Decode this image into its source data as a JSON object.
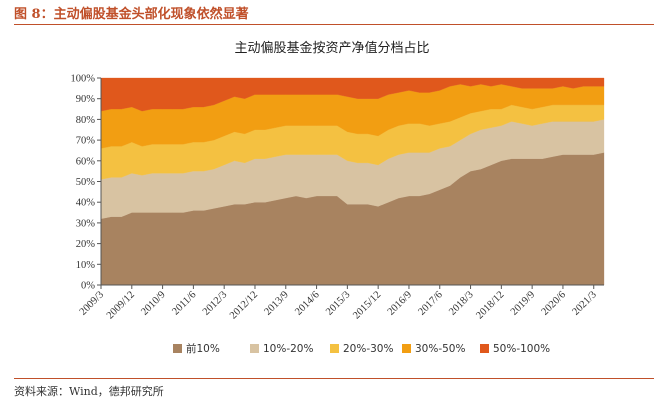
{
  "figure": {
    "title": "图 8：主动偏股基金头部化现象依然显著",
    "source": "资料来源：Wind，德邦研究所"
  },
  "chart_data": {
    "type": "area",
    "stacked": true,
    "title": "主动偏股基金按资产净值分档占比",
    "ylim": [
      0,
      100
    ],
    "y_ticks": [
      "0%",
      "10%",
      "20%",
      "30%",
      "40%",
      "50%",
      "60%",
      "70%",
      "80%",
      "90%",
      "100%"
    ],
    "x_tick_labels": [
      "2009/3",
      "2009/12",
      "2010/9",
      "2011/6",
      "2012/3",
      "2012/12",
      "2013/9",
      "2014/6",
      "2015/3",
      "2015/12",
      "2016/9",
      "2017/6",
      "2018/3",
      "2018/12",
      "2019/9",
      "2020/6",
      "2021/3"
    ],
    "legend_position": "bottom",
    "colors": [
      "#a88360",
      "#d8c3a2",
      "#f4c141",
      "#f29e12",
      "#e0581c"
    ],
    "x": [
      "2009/3",
      "2009/6",
      "2009/9",
      "2009/12",
      "2010/3",
      "2010/6",
      "2010/9",
      "2010/12",
      "2011/3",
      "2011/6",
      "2011/9",
      "2011/12",
      "2012/3",
      "2012/6",
      "2012/9",
      "2012/12",
      "2013/3",
      "2013/6",
      "2013/9",
      "2013/12",
      "2014/3",
      "2014/6",
      "2014/9",
      "2014/12",
      "2015/3",
      "2015/6",
      "2015/9",
      "2015/12",
      "2016/3",
      "2016/6",
      "2016/9",
      "2016/12",
      "2017/3",
      "2017/6",
      "2017/9",
      "2017/12",
      "2018/3",
      "2018/6",
      "2018/9",
      "2018/12",
      "2019/3",
      "2019/6",
      "2019/9",
      "2019/12",
      "2020/3",
      "2020/6",
      "2020/9",
      "2020/12",
      "2021/3",
      "2021/6"
    ],
    "series": [
      {
        "name": "前10%",
        "values": [
          32,
          33,
          33,
          35,
          35,
          35,
          35,
          35,
          35,
          36,
          36,
          37,
          38,
          39,
          39,
          40,
          40,
          41,
          42,
          43,
          42,
          43,
          43,
          43,
          39,
          39,
          39,
          38,
          40,
          42,
          43,
          43,
          44,
          46,
          48,
          52,
          55,
          56,
          58,
          60,
          61,
          61,
          61,
          61,
          62,
          63,
          63,
          63,
          63,
          64
        ]
      },
      {
        "name": "10%-20%",
        "values": [
          19,
          19,
          19,
          19,
          18,
          19,
          19,
          19,
          19,
          19,
          19,
          19,
          20,
          21,
          20,
          21,
          21,
          21,
          21,
          20,
          21,
          20,
          20,
          20,
          21,
          20,
          20,
          20,
          21,
          21,
          21,
          21,
          20,
          20,
          19,
          18,
          18,
          19,
          18,
          17,
          18,
          17,
          16,
          17,
          17,
          16,
          16,
          16,
          16,
          16
        ]
      },
      {
        "name": "20%-30%",
        "values": [
          15,
          15,
          15,
          15,
          14,
          14,
          14,
          14,
          14,
          14,
          14,
          14,
          14,
          14,
          14,
          14,
          14,
          14,
          14,
          14,
          14,
          14,
          14,
          14,
          14,
          14,
          14,
          14,
          14,
          14,
          14,
          14,
          13,
          12,
          12,
          11,
          10,
          9,
          9,
          8,
          8,
          8,
          8,
          8,
          8,
          8,
          8,
          8,
          8,
          7
        ]
      },
      {
        "name": "30%-50%",
        "values": [
          18,
          18,
          18,
          17,
          17,
          17,
          17,
          17,
          17,
          17,
          17,
          17,
          17,
          17,
          17,
          17,
          17,
          16,
          15,
          15,
          15,
          15,
          15,
          15,
          17,
          17,
          17,
          18,
          17,
          16,
          16,
          15,
          16,
          16,
          17,
          16,
          13,
          13,
          11,
          12,
          9,
          9,
          10,
          9,
          8,
          9,
          8,
          9,
          9,
          9
        ]
      },
      {
        "name": "50%-100%",
        "values": [
          16,
          15,
          15,
          14,
          16,
          15,
          15,
          15,
          15,
          14,
          14,
          13,
          11,
          9,
          10,
          8,
          8,
          8,
          8,
          8,
          8,
          8,
          8,
          8,
          9,
          10,
          10,
          10,
          8,
          7,
          6,
          7,
          7,
          6,
          4,
          3,
          4,
          3,
          4,
          3,
          4,
          5,
          5,
          5,
          5,
          4,
          5,
          4,
          4,
          4
        ]
      }
    ]
  }
}
